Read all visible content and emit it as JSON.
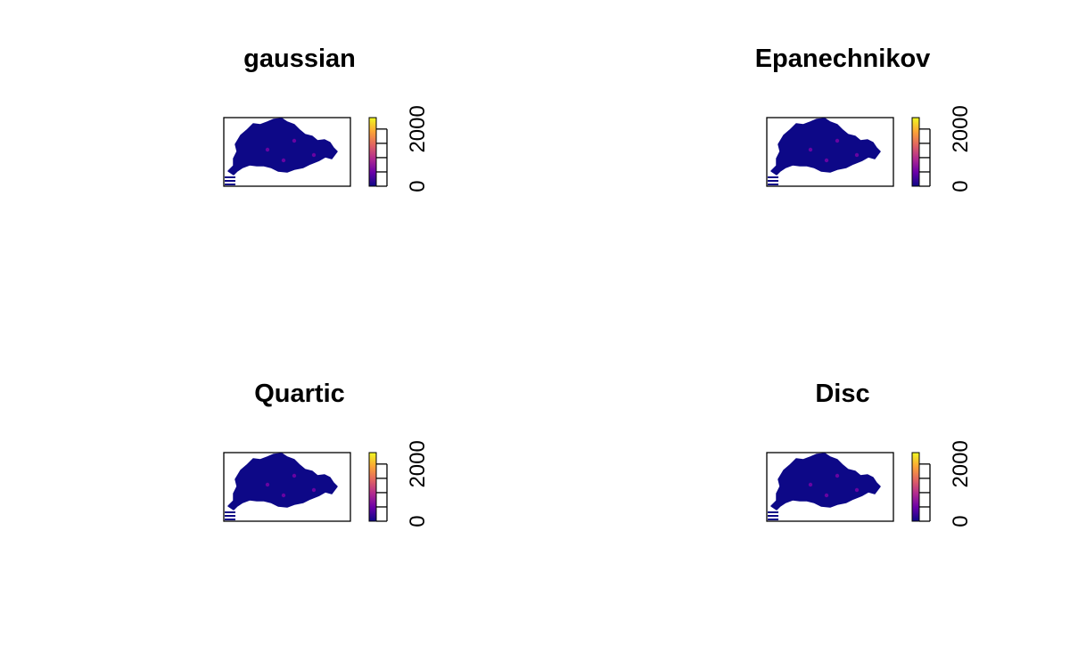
{
  "chart_data": [
    {
      "type": "heatmap",
      "title": "gaussian",
      "legend": {
        "ticks": [
          "0",
          "2000"
        ],
        "tick_values": [
          0,
          500,
          1000,
          1500,
          2000
        ],
        "range": [
          0,
          2400
        ],
        "placement": "right",
        "palette": "plasma"
      },
      "axes": false,
      "grid": false
    },
    {
      "type": "heatmap",
      "title": "Epanechnikov",
      "legend": {
        "ticks": [
          "0",
          "2000"
        ],
        "tick_values": [
          0,
          500,
          1000,
          1500,
          2000
        ],
        "range": [
          0,
          2400
        ],
        "placement": "right",
        "palette": "plasma"
      },
      "axes": false,
      "grid": false
    },
    {
      "type": "heatmap",
      "title": "Quartic",
      "legend": {
        "ticks": [
          "0",
          "2000"
        ],
        "tick_values": [
          0,
          500,
          1000,
          1500,
          2000
        ],
        "range": [
          0,
          2400
        ],
        "placement": "right",
        "palette": "plasma"
      },
      "axes": false,
      "grid": false
    },
    {
      "type": "heatmap",
      "title": "Disc",
      "legend": {
        "ticks": [
          "0",
          "2000"
        ],
        "tick_values": [
          0,
          500,
          1000,
          1500,
          2000
        ],
        "range": [
          0,
          2400
        ],
        "placement": "right",
        "palette": "plasma"
      },
      "axes": false,
      "grid": false
    }
  ],
  "colors": {
    "map_fill": "#0d0887",
    "hotspot": "#7e03a8",
    "palette_stops": [
      "#0d0887",
      "#6a00a8",
      "#b12a90",
      "#e16462",
      "#fca636",
      "#f0f921"
    ]
  }
}
